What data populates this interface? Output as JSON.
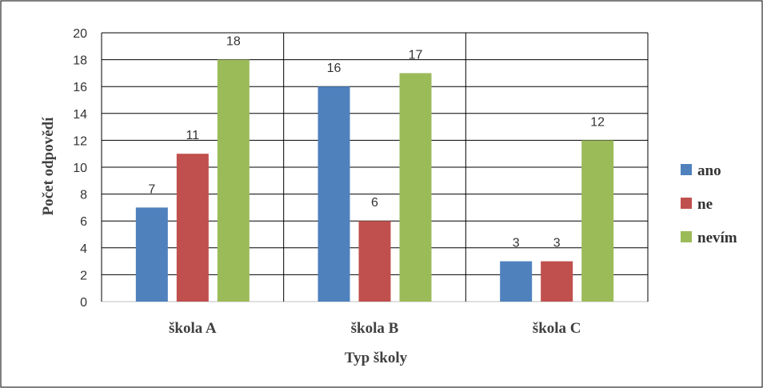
{
  "chart_data": {
    "type": "bar",
    "categories": [
      "škola A",
      "škola B",
      "škola C"
    ],
    "series": [
      {
        "name": "ano",
        "values": [
          7,
          16,
          3
        ],
        "color": "#4f81bd"
      },
      {
        "name": "ne",
        "values": [
          11,
          6,
          3
        ],
        "color": "#c0504d"
      },
      {
        "name": "nevím",
        "values": [
          18,
          17,
          12
        ],
        "color": "#9bbb59"
      }
    ],
    "xlabel": "Typ školy",
    "ylabel": "Počet odpovědí",
    "ylim": [
      0,
      20
    ],
    "yticks": [
      0,
      2,
      4,
      6,
      8,
      10,
      12,
      14,
      16,
      18,
      20
    ],
    "grid": true,
    "data_labels": true,
    "legend": "right"
  }
}
